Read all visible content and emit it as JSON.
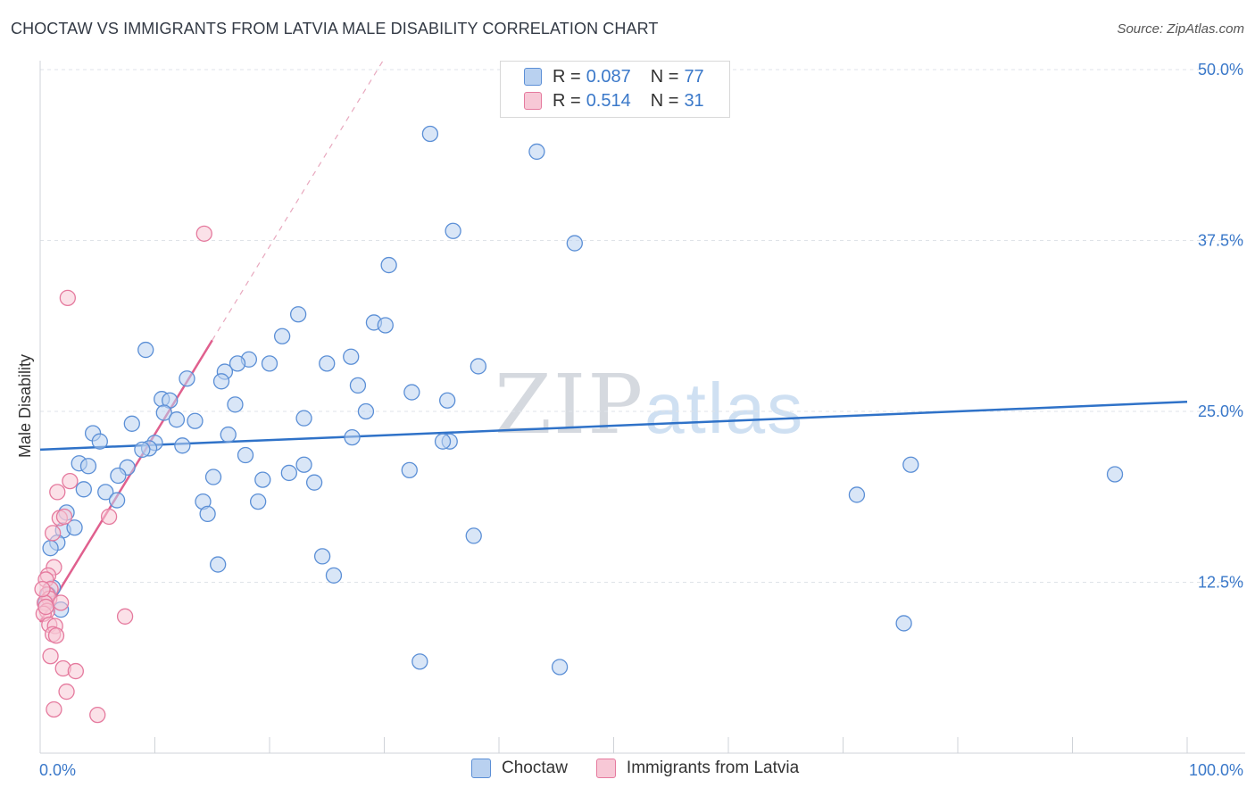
{
  "title": "CHOCTAW VS IMMIGRANTS FROM LATVIA MALE DISABILITY CORRELATION CHART",
  "source": "Source: ZipAtlas.com",
  "watermark": {
    "zip": "ZIP",
    "atlas": "atlas"
  },
  "colors": {
    "choctaw": "#5b8fd6",
    "choctaw_fill": "#b9d1f0",
    "latvia": "#e57a9e",
    "latvia_fill": "#f7c8d6",
    "trend_blue": "#2f72c8",
    "trend_pink": "#e0608e",
    "axis_text": "#3a78c9"
  },
  "legend_top": [
    {
      "r_label": "R =",
      "r_value": "0.087",
      "n_label": "N =",
      "n_value": "77"
    },
    {
      "r_label": "R =",
      "r_value": "0.514",
      "n_label": "N =",
      "n_value": "31"
    }
  ],
  "bottom_legend": [
    "Choctaw",
    "Immigrants from Latvia"
  ],
  "chart_data": {
    "type": "scatter",
    "title": "CHOCTAW VS IMMIGRANTS FROM LATVIA MALE DISABILITY CORRELATION CHART",
    "xlabel": "",
    "ylabel": "Male Disability",
    "xlim": [
      0,
      100
    ],
    "ylim": [
      0,
      50
    ],
    "x_tick_labels": [
      "0.0%",
      "100.0%"
    ],
    "y_ticks": [
      12.5,
      25.0,
      37.5,
      50.0
    ],
    "y_tick_labels": [
      "12.5%",
      "25.0%",
      "37.5%",
      "50.0%"
    ],
    "grid": true,
    "series": [
      {
        "name": "Choctaw",
        "r": 0.087,
        "n": 77,
        "trend": {
          "x": [
            0,
            100
          ],
          "y": [
            22.2,
            25.7
          ]
        },
        "points": [
          [
            34,
            45.3
          ],
          [
            43.3,
            44.0
          ],
          [
            36,
            38.2
          ],
          [
            46.6,
            37.3
          ],
          [
            30.4,
            35.7
          ],
          [
            22.5,
            32.1
          ],
          [
            29.1,
            31.5
          ],
          [
            30.1,
            31.3
          ],
          [
            21.1,
            30.5
          ],
          [
            9.2,
            29.5
          ],
          [
            27.1,
            29.0
          ],
          [
            18.2,
            28.8
          ],
          [
            17.2,
            28.5
          ],
          [
            25.0,
            28.5
          ],
          [
            20.0,
            28.5
          ],
          [
            38.2,
            28.3
          ],
          [
            16.1,
            27.9
          ],
          [
            12.8,
            27.4
          ],
          [
            15.8,
            27.2
          ],
          [
            27.7,
            26.9
          ],
          [
            32.4,
            26.4
          ],
          [
            10.6,
            25.9
          ],
          [
            11.3,
            25.8
          ],
          [
            17.0,
            25.5
          ],
          [
            35.5,
            25.8
          ],
          [
            28.4,
            25.0
          ],
          [
            10.8,
            24.9
          ],
          [
            23.0,
            24.5
          ],
          [
            11.9,
            24.4
          ],
          [
            13.5,
            24.3
          ],
          [
            8.0,
            24.1
          ],
          [
            4.6,
            23.4
          ],
          [
            16.4,
            23.3
          ],
          [
            27.2,
            23.1
          ],
          [
            35.7,
            22.8
          ],
          [
            35.1,
            22.8
          ],
          [
            5.2,
            22.8
          ],
          [
            10.0,
            22.7
          ],
          [
            12.4,
            22.5
          ],
          [
            9.5,
            22.3
          ],
          [
            8.9,
            22.2
          ],
          [
            17.9,
            21.8
          ],
          [
            3.4,
            21.2
          ],
          [
            23.0,
            21.1
          ],
          [
            7.6,
            20.9
          ],
          [
            4.2,
            21.0
          ],
          [
            32.2,
            20.7
          ],
          [
            21.7,
            20.5
          ],
          [
            6.8,
            20.3
          ],
          [
            15.1,
            20.2
          ],
          [
            19.4,
            20.0
          ],
          [
            23.9,
            19.8
          ],
          [
            3.8,
            19.3
          ],
          [
            5.7,
            19.1
          ],
          [
            75.9,
            21.1
          ],
          [
            93.7,
            20.4
          ],
          [
            71.2,
            18.9
          ],
          [
            6.7,
            18.5
          ],
          [
            19.0,
            18.4
          ],
          [
            14.2,
            18.4
          ],
          [
            14.6,
            17.5
          ],
          [
            2.3,
            17.6
          ],
          [
            2.0,
            16.3
          ],
          [
            1.5,
            15.4
          ],
          [
            3.0,
            16.5
          ],
          [
            37.8,
            15.9
          ],
          [
            0.9,
            15.0
          ],
          [
            24.6,
            14.4
          ],
          [
            15.5,
            13.8
          ],
          [
            25.6,
            13.0
          ],
          [
            75.3,
            9.5
          ],
          [
            33.1,
            6.7
          ],
          [
            45.3,
            6.3
          ],
          [
            1.1,
            12.1
          ],
          [
            0.7,
            11.6
          ],
          [
            0.5,
            11.0
          ],
          [
            1.8,
            10.5
          ]
        ]
      },
      {
        "name": "Immigrants from Latvia",
        "r": 0.514,
        "n": 31,
        "trend": {
          "x": [
            0,
            15
          ],
          "y": [
            9.6,
            30.2
          ]
        },
        "trend_extended": {
          "x": [
            15,
            30
          ],
          "y": [
            30.2,
            50.8
          ]
        },
        "points": [
          [
            14.3,
            38.0
          ],
          [
            2.4,
            33.3
          ],
          [
            2.6,
            19.9
          ],
          [
            1.5,
            19.1
          ],
          [
            1.7,
            17.2
          ],
          [
            2.1,
            17.3
          ],
          [
            6.0,
            17.3
          ],
          [
            1.1,
            16.1
          ],
          [
            1.2,
            13.6
          ],
          [
            0.7,
            13.0
          ],
          [
            0.5,
            12.7
          ],
          [
            0.9,
            12.0
          ],
          [
            0.6,
            11.6
          ],
          [
            0.8,
            11.3
          ],
          [
            0.4,
            11.0
          ],
          [
            1.8,
            11.0
          ],
          [
            0.6,
            10.4
          ],
          [
            0.3,
            10.2
          ],
          [
            7.4,
            10.0
          ],
          [
            0.8,
            9.4
          ],
          [
            1.3,
            9.3
          ],
          [
            1.1,
            8.7
          ],
          [
            1.4,
            8.6
          ],
          [
            0.9,
            7.1
          ],
          [
            2.0,
            6.2
          ],
          [
            3.1,
            6.0
          ],
          [
            2.3,
            4.5
          ],
          [
            1.2,
            3.2
          ],
          [
            5.0,
            2.8
          ],
          [
            0.2,
            12.0
          ],
          [
            0.5,
            10.7
          ]
        ]
      }
    ]
  }
}
